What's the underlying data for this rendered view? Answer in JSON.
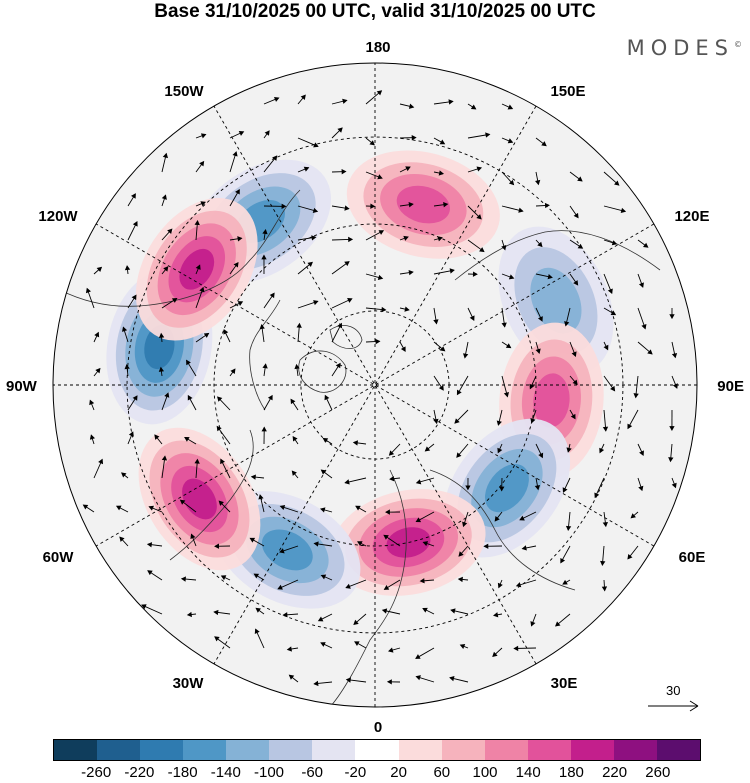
{
  "title": "Base 31/10/2025 00 UTC, valid 31/10/2025 00 UTC",
  "brand": "MODES",
  "brand_mark": "©",
  "longitude_labels": {
    "top": "180",
    "bottom": "0",
    "left": "90W",
    "right": "90E",
    "upper_left": "150W",
    "upper_right": "150E",
    "mid_upper_left": "120W",
    "mid_upper_right": "120E",
    "lower_left": "60W",
    "lower_right": "60E",
    "bottom_left": "30W",
    "bottom_right": "30E"
  },
  "reference_vector": {
    "label": "30",
    "icon": "arrow-right-icon"
  },
  "colorbar": {
    "colors": [
      "#0f3d5c",
      "#1f5f8f",
      "#2f7bb0",
      "#4f97c6",
      "#85b2d6",
      "#b8c6e2",
      "#e4e4f2",
      "#ffffff",
      "#fbdcdc",
      "#f6b3bd",
      "#ef83a6",
      "#e2529b",
      "#c31f8c",
      "#8e1080",
      "#5c0d6e"
    ],
    "ticks": [
      "-260",
      "-220",
      "-180",
      "-140",
      "-100",
      "-60",
      "-20",
      "20",
      "60",
      "100",
      "140",
      "180",
      "220",
      "260"
    ]
  },
  "anomalies": [
    {
      "lon": -145,
      "r": 0.62,
      "value": -140
    },
    {
      "lon": 165,
      "r": 0.58,
      "value": 140
    },
    {
      "lon": 115,
      "r": 0.62,
      "value": -100
    },
    {
      "lon": 85,
      "r": 0.55,
      "value": 140
    },
    {
      "lon": 52,
      "r": 0.52,
      "value": -140
    },
    {
      "lon": 12,
      "r": 0.5,
      "value": 180
    },
    {
      "lon": -28,
      "r": 0.58,
      "value": -140
    },
    {
      "lon": -57,
      "r": 0.65,
      "value": 180
    },
    {
      "lon": -100,
      "r": 0.68,
      "value": -180
    },
    {
      "lon": -123,
      "r": 0.66,
      "value": 180
    }
  ]
}
